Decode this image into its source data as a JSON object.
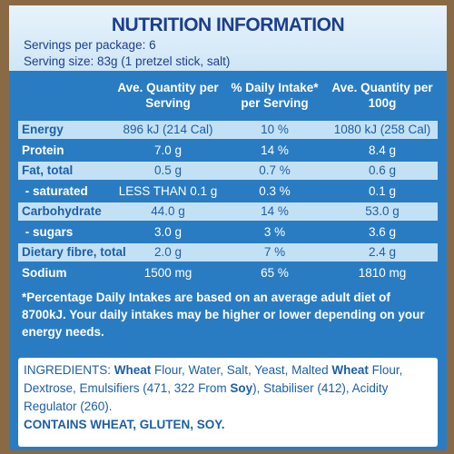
{
  "header": {
    "title": "NUTRITION INFORMATION",
    "servings_per_package": "Servings per package: 6",
    "serving_size": "Serving size: 83g (1 pretzel stick, salt)"
  },
  "table": {
    "columns": [
      "Ave. Quantity per Serving",
      "% Daily Intake* per Serving",
      "Ave. Quantity per 100g"
    ],
    "rows": [
      [
        "Energy",
        "896 kJ (214 Cal)",
        "10 %",
        "1080 kJ (258 Cal)"
      ],
      [
        "Protein",
        "7.0 g",
        "14 %",
        "8.4 g"
      ],
      [
        "Fat, total",
        "0.5 g",
        "0.7 %",
        "0.6 g"
      ],
      [
        " - saturated",
        "LESS THAN 0.1 g",
        "0.3 %",
        "0.1 g"
      ],
      [
        "Carbohydrate",
        "44.0 g",
        "14 %",
        "53.0 g"
      ],
      [
        " - sugars",
        "3.0 g",
        "3 %",
        "3.6 g"
      ],
      [
        "Dietary fibre, total",
        "2.0 g",
        "7 %",
        "2.4 g"
      ],
      [
        "Sodium",
        "1500 mg",
        "65 %",
        "1810 mg"
      ]
    ]
  },
  "footnote": "*Percentage Daily Intakes are based on an average adult diet of 8700kJ. Your daily intakes may be higher or lower depending on your energy needs.",
  "ingredients": {
    "segments": [
      {
        "text": "INGREDIENTS: ",
        "bold": false
      },
      {
        "text": "Wheat",
        "bold": true
      },
      {
        "text": " Flour, Water, Salt, Yeast, Malted ",
        "bold": false
      },
      {
        "text": "Wheat",
        "bold": true
      },
      {
        "text": " Flour, Dextrose, Emulsifiers (471, 322 From ",
        "bold": false
      },
      {
        "text": "Soy",
        "bold": true
      },
      {
        "text": "), Stabiliser (412), Acidity Regulator (260).",
        "bold": false
      }
    ],
    "allergens": "CONTAINS WHEAT, GLUTEN, SOY."
  }
}
